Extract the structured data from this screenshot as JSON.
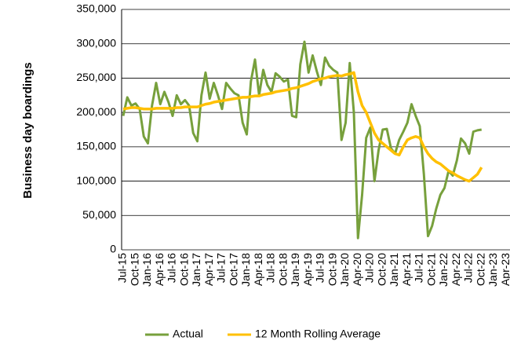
{
  "chart_data": {
    "type": "line",
    "y_label": "Business day boardings",
    "categories": [
      "Jul-15",
      null,
      null,
      "Oct-15",
      null,
      null,
      "Jan-16",
      null,
      null,
      "Apr-16",
      null,
      null,
      "Jul-16",
      null,
      null,
      "Oct-16",
      null,
      null,
      "Jan-17",
      null,
      null,
      "Apr-17",
      null,
      null,
      "Jul-17",
      null,
      null,
      "Oct-17",
      null,
      null,
      "Jan-18",
      null,
      null,
      "Apr-18",
      null,
      null,
      "Jul-18",
      null,
      null,
      "Oct-18",
      null,
      null,
      "Jan-19",
      null,
      null,
      "Apr-19",
      null,
      null,
      "Jul-19",
      null,
      null,
      "Oct-19",
      null,
      null,
      "Jan-20",
      null,
      null,
      "Apr-20",
      null,
      null,
      "Jul-20",
      null,
      null,
      "Oct-20",
      null,
      null,
      "Jan-21",
      null,
      null,
      "Apr-21",
      null,
      null,
      "Jul-21",
      null,
      null,
      "Oct-21",
      null,
      null,
      "Jan-22",
      null,
      null,
      "Apr-22",
      null,
      null,
      "Jul-22",
      null,
      null,
      "Oct-22",
      null,
      null,
      "Jan-23",
      null,
      null,
      "Apr-23"
    ],
    "series": [
      {
        "name": "Actual",
        "color": "#77a03c",
        "width": 3,
        "values": [
          195000,
          222000,
          210000,
          213000,
          205000,
          165000,
          155000,
          210000,
          243000,
          212000,
          230000,
          215000,
          195000,
          225000,
          212000,
          218000,
          210000,
          170000,
          158000,
          225000,
          258000,
          220000,
          243000,
          225000,
          205000,
          243000,
          235000,
          228000,
          225000,
          185000,
          168000,
          245000,
          277000,
          225000,
          262000,
          240000,
          230000,
          257000,
          252000,
          245000,
          248000,
          195000,
          193000,
          270000,
          303000,
          258000,
          283000,
          260000,
          240000,
          280000,
          268000,
          262000,
          258000,
          160000,
          185000,
          272000,
          200000,
          17000,
          80000,
          163000,
          178000,
          100000,
          145000,
          175000,
          176000,
          148000,
          140000,
          160000,
          172000,
          185000,
          212000,
          195000,
          180000,
          110000,
          20000,
          35000,
          60000,
          80000,
          90000,
          115000,
          108000,
          130000,
          162000,
          155000,
          140000,
          172000,
          174000,
          175000,
          null,
          null,
          null,
          null,
          null,
          null
        ]
      },
      {
        "name": "12 Month Rolling Average",
        "color": "#ffc000",
        "width": 3.5,
        "values": [
          205000,
          206000,
          207000,
          207000,
          206000,
          205000,
          205000,
          205000,
          206000,
          206000,
          206000,
          206000,
          206000,
          207000,
          207000,
          208000,
          208000,
          208000,
          208000,
          210000,
          212000,
          213000,
          215000,
          216000,
          217000,
          218000,
          219000,
          220000,
          221000,
          222000,
          222000,
          223000,
          224000,
          224000,
          226000,
          227000,
          228000,
          230000,
          231000,
          232000,
          233000,
          235000,
          236000,
          238000,
          240000,
          242000,
          245000,
          247000,
          249000,
          250000,
          252000,
          253000,
          254000,
          253000,
          255000,
          256000,
          258000,
          230000,
          210000,
          200000,
          185000,
          170000,
          160000,
          155000,
          150000,
          145000,
          140000,
          138000,
          150000,
          160000,
          163000,
          165000,
          163000,
          150000,
          140000,
          133000,
          128000,
          125000,
          120000,
          115000,
          112000,
          108000,
          105000,
          102000,
          100000,
          105000,
          110000,
          120000,
          null,
          null,
          null,
          null,
          null,
          null
        ]
      }
    ],
    "ylim": [
      0,
      350000
    ],
    "yticks": [
      0,
      {
        "value": 50000,
        "label": "50,000"
      },
      {
        "value": 100000,
        "label": "100,000"
      },
      {
        "value": 150000,
        "label": "150,000"
      },
      {
        "value": 200000,
        "label": "200,000"
      },
      {
        "value": 250000,
        "label": "250,000"
      },
      {
        "value": 300000,
        "label": "300,000"
      },
      {
        "value": 350000,
        "label": "350,000"
      }
    ],
    "grid": true,
    "legend": "bottom"
  }
}
